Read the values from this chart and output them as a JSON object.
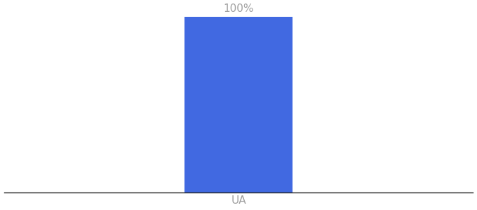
{
  "categories": [
    "UA"
  ],
  "values": [
    100
  ],
  "bar_color": "#4169E1",
  "label_color": "#a0a0a0",
  "xlabel_color": "#a0a0a0",
  "background_color": "#ffffff",
  "ylim": [
    0,
    100
  ],
  "bar_width": 0.55,
  "xlim": [
    -1.2,
    1.2
  ],
  "label_fontsize": 11,
  "tick_fontsize": 11,
  "spine_color": "#222222",
  "spine_linewidth": 1.0
}
